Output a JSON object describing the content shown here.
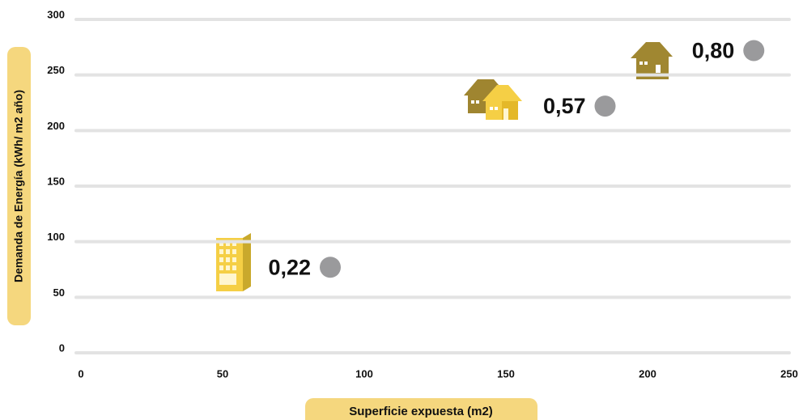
{
  "chart_data": {
    "type": "scatter",
    "x_label": "Superficie expuesta (m2)",
    "y_label": "Demanda de Energía (kWh/ m2 año)",
    "x": [
      88,
      185,
      237.5
    ],
    "values": [
      77,
      222,
      272
    ],
    "point_labels": [
      "0,22",
      "0,57",
      "0,80"
    ],
    "color": "#9a9a9c",
    "xlim": [
      0,
      250
    ],
    "xticks": [
      0,
      50,
      100,
      150,
      200,
      250
    ],
    "ylim": [
      0,
      300
    ],
    "yticks": [
      0,
      50,
      100,
      150,
      200,
      250,
      300
    ],
    "grid": true
  }
}
